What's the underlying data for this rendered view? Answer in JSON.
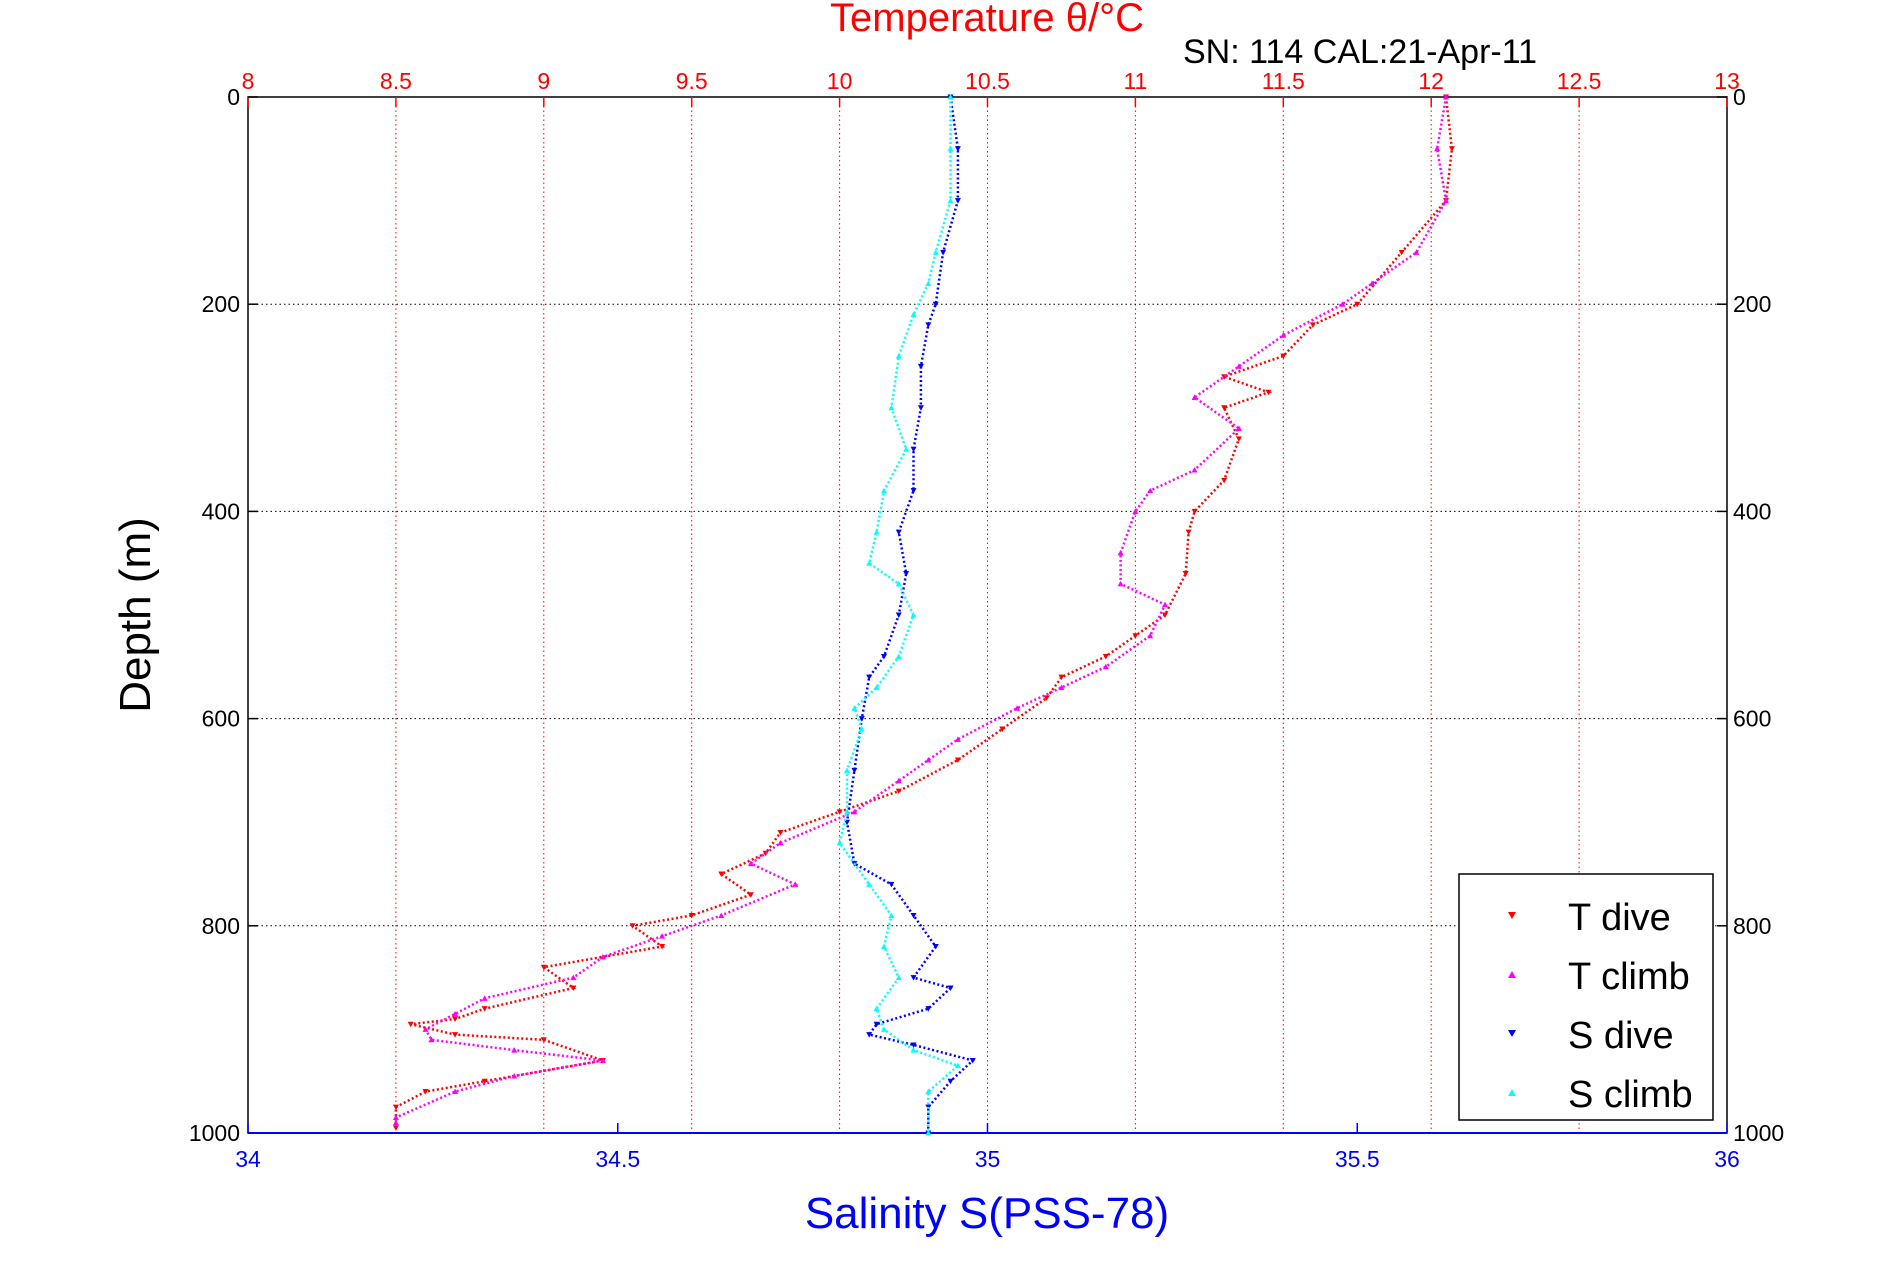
{
  "chart_data": {
    "type": "scatter",
    "title": "Temperature θ/°C",
    "subtitle": "SN: 114  CAL:21-Apr-11",
    "xlabel_top": "Temperature θ/°C",
    "xlabel_bottom": "Salinity S(PSS-78)",
    "ylabel": "Depth (m)",
    "y_axis": {
      "range": [
        0,
        1000
      ],
      "reversed": true,
      "ticks": [
        0,
        200,
        400,
        600,
        800,
        1000
      ]
    },
    "x_top_axis": {
      "quantity": "temperature",
      "range": [
        8,
        13
      ],
      "ticks": [
        8,
        8.5,
        9,
        9.5,
        10,
        10.5,
        11,
        11.5,
        12,
        12.5,
        13
      ],
      "tick_labels": [
        "8",
        "8.5",
        "9",
        "9.5",
        "10",
        "10.5",
        "11",
        "11.5",
        "12",
        "12.5",
        "13"
      ]
    },
    "x_bottom_axis": {
      "quantity": "salinity",
      "range": [
        34,
        36
      ],
      "ticks": [
        34,
        34.5,
        35,
        35.5,
        36
      ],
      "tick_labels": [
        "34",
        "34.5",
        "35",
        "35.5",
        "36"
      ]
    },
    "grid": true,
    "legend": {
      "placement": "bottom-right",
      "entries": [
        "T dive",
        "T climb",
        "S dive",
        "S climb"
      ]
    },
    "colors": {
      "T dive": "#ff0000",
      "T climb": "#ff00ff",
      "S dive": "#0000ff",
      "S climb": "#00ffff",
      "temperature_axis": "#ff0000",
      "salinity_axis": "#0000ff"
    },
    "series": [
      {
        "name": "T dive",
        "axis": "temperature",
        "marker": "down-triangle",
        "points": [
          [
            12.05,
            0
          ],
          [
            12.07,
            50
          ],
          [
            12.05,
            100
          ],
          [
            11.9,
            150
          ],
          [
            11.75,
            200
          ],
          [
            11.6,
            220
          ],
          [
            11.5,
            250
          ],
          [
            11.3,
            270
          ],
          [
            11.45,
            285
          ],
          [
            11.3,
            300
          ],
          [
            11.35,
            330
          ],
          [
            11.3,
            370
          ],
          [
            11.2,
            400
          ],
          [
            11.18,
            420
          ],
          [
            11.17,
            460
          ],
          [
            11.1,
            500
          ],
          [
            11.0,
            520
          ],
          [
            10.9,
            540
          ],
          [
            10.75,
            560
          ],
          [
            10.7,
            580
          ],
          [
            10.55,
            610
          ],
          [
            10.4,
            640
          ],
          [
            10.2,
            670
          ],
          [
            10.0,
            690
          ],
          [
            9.8,
            710
          ],
          [
            9.75,
            730
          ],
          [
            9.6,
            750
          ],
          [
            9.7,
            770
          ],
          [
            9.5,
            790
          ],
          [
            9.3,
            800
          ],
          [
            9.4,
            820
          ],
          [
            9.0,
            840
          ],
          [
            9.1,
            860
          ],
          [
            8.8,
            880
          ],
          [
            8.7,
            890
          ],
          [
            8.55,
            895
          ],
          [
            8.7,
            905
          ],
          [
            9.0,
            910
          ],
          [
            9.2,
            930
          ],
          [
            8.8,
            950
          ],
          [
            8.6,
            960
          ],
          [
            8.5,
            975
          ],
          [
            8.5,
            995
          ]
        ]
      },
      {
        "name": "T climb",
        "axis": "temperature",
        "marker": "up-triangle",
        "points": [
          [
            12.05,
            0
          ],
          [
            12.02,
            50
          ],
          [
            12.05,
            100
          ],
          [
            11.95,
            150
          ],
          [
            11.8,
            180
          ],
          [
            11.7,
            200
          ],
          [
            11.5,
            230
          ],
          [
            11.35,
            260
          ],
          [
            11.2,
            290
          ],
          [
            11.35,
            320
          ],
          [
            11.2,
            360
          ],
          [
            11.05,
            380
          ],
          [
            11.0,
            400
          ],
          [
            10.95,
            440
          ],
          [
            10.95,
            470
          ],
          [
            11.1,
            490
          ],
          [
            11.05,
            520
          ],
          [
            10.9,
            550
          ],
          [
            10.75,
            570
          ],
          [
            10.6,
            590
          ],
          [
            10.4,
            620
          ],
          [
            10.3,
            640
          ],
          [
            10.2,
            660
          ],
          [
            10.05,
            690
          ],
          [
            9.8,
            720
          ],
          [
            9.7,
            740
          ],
          [
            9.85,
            760
          ],
          [
            9.6,
            790
          ],
          [
            9.4,
            810
          ],
          [
            9.2,
            830
          ],
          [
            9.1,
            850
          ],
          [
            8.8,
            870
          ],
          [
            8.7,
            885
          ],
          [
            8.6,
            900
          ],
          [
            8.62,
            910
          ],
          [
            8.9,
            920
          ],
          [
            9.2,
            930
          ],
          [
            8.9,
            945
          ],
          [
            8.7,
            960
          ],
          [
            8.5,
            985
          ],
          [
            8.5,
            990
          ]
        ]
      },
      {
        "name": "S dive",
        "axis": "salinity",
        "marker": "down-triangle",
        "points": [
          [
            34.95,
            0
          ],
          [
            34.96,
            50
          ],
          [
            34.96,
            100
          ],
          [
            34.94,
            150
          ],
          [
            34.93,
            200
          ],
          [
            34.92,
            220
          ],
          [
            34.91,
            260
          ],
          [
            34.91,
            300
          ],
          [
            34.9,
            340
          ],
          [
            34.9,
            380
          ],
          [
            34.88,
            420
          ],
          [
            34.89,
            460
          ],
          [
            34.88,
            500
          ],
          [
            34.86,
            540
          ],
          [
            34.84,
            560
          ],
          [
            34.83,
            600
          ],
          [
            34.82,
            650
          ],
          [
            34.81,
            700
          ],
          [
            34.82,
            740
          ],
          [
            34.87,
            760
          ],
          [
            34.9,
            790
          ],
          [
            34.93,
            820
          ],
          [
            34.9,
            850
          ],
          [
            34.95,
            860
          ],
          [
            34.92,
            880
          ],
          [
            34.85,
            895
          ],
          [
            34.84,
            905
          ],
          [
            34.9,
            915
          ],
          [
            34.98,
            930
          ],
          [
            34.95,
            950
          ],
          [
            34.92,
            975
          ],
          [
            34.92,
            1000
          ]
        ]
      },
      {
        "name": "S climb",
        "axis": "salinity",
        "marker": "up-triangle",
        "points": [
          [
            34.95,
            0
          ],
          [
            34.95,
            50
          ],
          [
            34.95,
            100
          ],
          [
            34.93,
            150
          ],
          [
            34.92,
            180
          ],
          [
            34.9,
            210
          ],
          [
            34.88,
            250
          ],
          [
            34.87,
            300
          ],
          [
            34.89,
            340
          ],
          [
            34.86,
            380
          ],
          [
            34.85,
            420
          ],
          [
            34.84,
            450
          ],
          [
            34.88,
            470
          ],
          [
            34.9,
            500
          ],
          [
            34.88,
            540
          ],
          [
            34.85,
            570
          ],
          [
            34.82,
            590
          ],
          [
            34.83,
            610
          ],
          [
            34.81,
            650
          ],
          [
            34.81,
            690
          ],
          [
            34.8,
            720
          ],
          [
            34.84,
            760
          ],
          [
            34.87,
            790
          ],
          [
            34.86,
            820
          ],
          [
            34.88,
            850
          ],
          [
            34.85,
            880
          ],
          [
            34.86,
            900
          ],
          [
            34.9,
            920
          ],
          [
            34.96,
            935
          ],
          [
            34.92,
            960
          ],
          [
            34.92,
            1000
          ]
        ]
      }
    ]
  }
}
